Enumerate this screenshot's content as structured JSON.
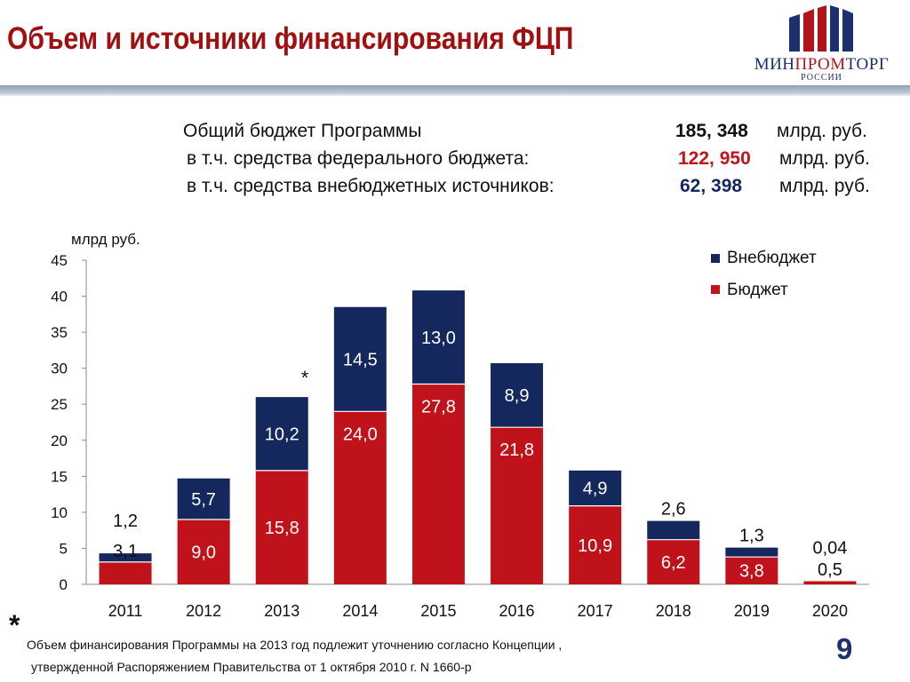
{
  "header": {
    "title": "Объем и источники финансирования ФЦП",
    "logo_text_part1": "МИН",
    "logo_text_part2": "ПРОМ",
    "logo_text_part3": "ТОРГ",
    "logo_subtitle": "РОССИИ"
  },
  "summary": {
    "total_label": "Общий бюджет Программы",
    "total_value": "185, 348",
    "federal_label": "в т.ч. средства федерального бюджета:",
    "federal_value": "122, 950",
    "offbudget_label": "в т.ч. средства внебюджетных источников:",
    "offbudget_value": "62, 398",
    "unit": "млрд. руб."
  },
  "colors": {
    "budget": "#c0121a",
    "offbudget": "#14285e",
    "title": "#a01010"
  },
  "chart_data": {
    "type": "bar",
    "stacked": true,
    "ylabel": "млрд руб.",
    "ylim": [
      0,
      45
    ],
    "yticks": [
      0,
      5,
      10,
      15,
      20,
      25,
      30,
      35,
      40,
      45
    ],
    "categories": [
      "2011",
      "2012",
      "2013",
      "2014",
      "2015",
      "2016",
      "2017",
      "2018",
      "2019",
      "2020"
    ],
    "series": [
      {
        "name": "Бюджет",
        "values": [
          3.1,
          9.0,
          15.8,
          24.0,
          27.8,
          21.8,
          10.9,
          6.2,
          3.8,
          0.5
        ],
        "labels": [
          "3,1",
          "9,0",
          "15,8",
          "24,0",
          "27,8",
          "21,8",
          "10,9",
          "6,2",
          "3,8",
          "0,5"
        ]
      },
      {
        "name": "Внебюджет",
        "values": [
          1.2,
          5.7,
          10.2,
          14.5,
          13.0,
          8.9,
          4.9,
          2.6,
          1.3,
          0.04
        ],
        "labels": [
          "1,2",
          "5,7",
          "10,2",
          "14,5",
          "13,0",
          "8,9",
          "4,9",
          "2,6",
          "1,3",
          "0,04"
        ]
      }
    ],
    "legend_position": "top-right",
    "annotation": "*"
  },
  "footnote": {
    "marker": "*",
    "line1": "Объем финансирования Программы на 2013 год подлежит уточнению согласно Концепции ,",
    "line2": "утвержденной Распоряжением  Правительства от 1 октября 2010 г. N 1660-р"
  },
  "page_number": "9"
}
